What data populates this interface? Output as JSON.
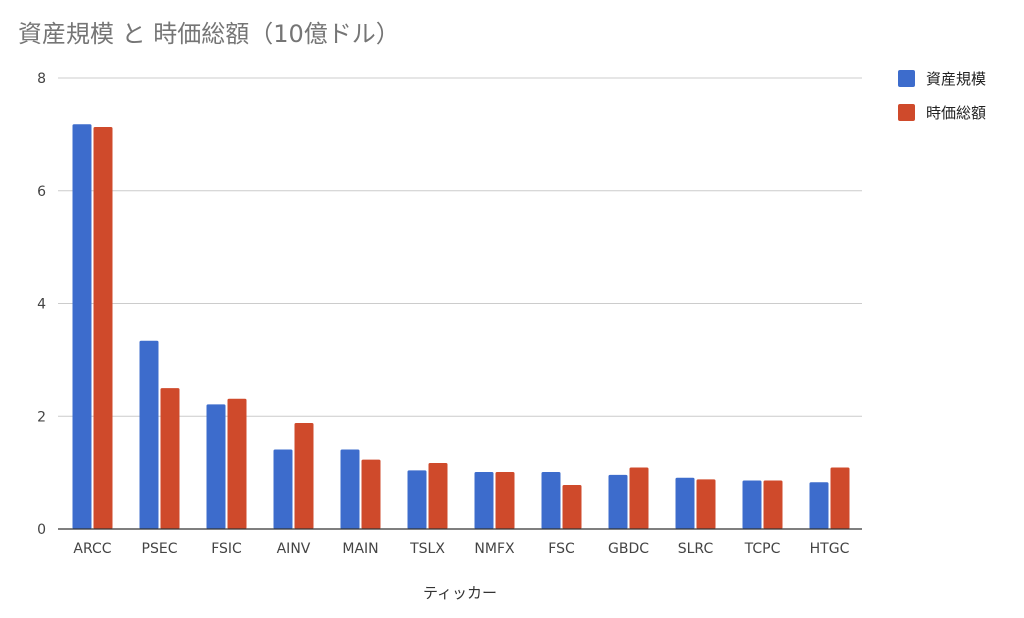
{
  "chart_data": {
    "type": "bar",
    "title": "資産規模 と 時価総額（10億ドル）",
    "xlabel": "ティッカー",
    "ylabel": "",
    "ylim": [
      0,
      8
    ],
    "yticks": [
      0,
      2,
      4,
      6,
      8
    ],
    "grid": true,
    "legend_position": "top-right",
    "categories": [
      "ARCC",
      "PSEC",
      "FSIC",
      "AINV",
      "MAIN",
      "TSLX",
      "NMFX",
      "FSC",
      "GBDC",
      "SLRC",
      "TCPC",
      "HTGC"
    ],
    "series": [
      {
        "name": "資産規模",
        "color": "#3d6ccc",
        "values": [
          7.18,
          3.34,
          2.21,
          1.41,
          1.41,
          1.04,
          1.01,
          1.01,
          0.96,
          0.91,
          0.86,
          0.83
        ]
      },
      {
        "name": "時価総額",
        "color": "#cf4a2b",
        "values": [
          7.13,
          2.5,
          2.31,
          1.88,
          1.23,
          1.17,
          1.01,
          0.78,
          1.09,
          0.88,
          0.86,
          1.09
        ]
      }
    ]
  }
}
